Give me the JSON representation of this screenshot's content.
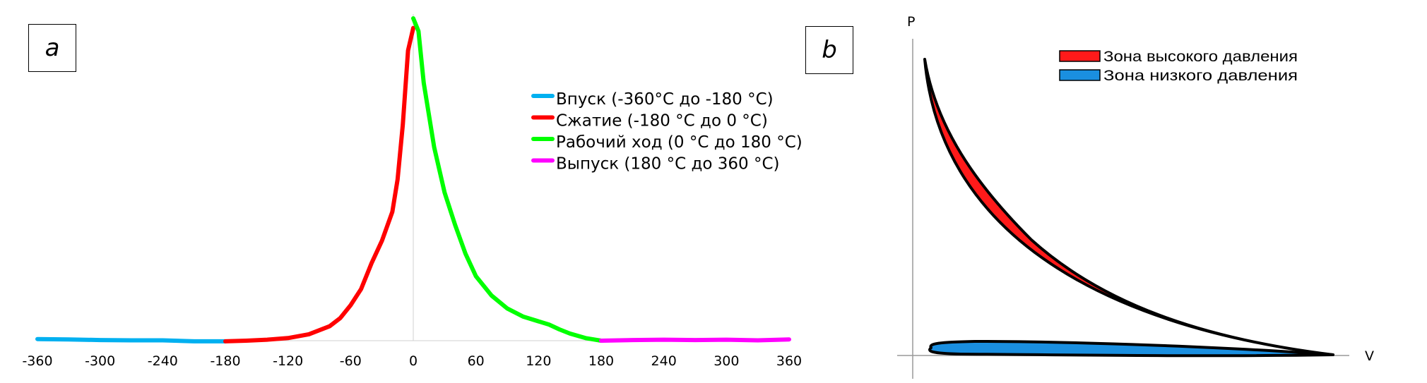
{
  "panels": {
    "a_label": "a",
    "b_label": "b"
  },
  "chart_data": [
    {
      "type": "line",
      "panel": "a",
      "xlim": [
        -360,
        360
      ],
      "x_ticks": [
        "-360",
        "-300",
        "-240",
        "-180",
        "-120",
        "-60",
        "0",
        "60",
        "120",
        "180",
        "240",
        "300",
        "360"
      ],
      "y_axis_visible": false,
      "grid": false,
      "legend_position": "right",
      "legend": [
        {
          "label": "Впуск (-360°C до -180 °C)",
          "color": "#00b0f0"
        },
        {
          "label": "Сжатие (-180 °C до 0 °C)",
          "color": "#ff0000"
        },
        {
          "label": "Рабочий ход (0 °C до 180 °C)",
          "color": "#00ff00"
        },
        {
          "label": "Выпуск (180 °C  до 360 °C)",
          "color": "#ff00ff"
        }
      ],
      "series": [
        {
          "name": "Впуск (-360°C до -180 °C)",
          "color": "#00b0f0",
          "points": [
            [
              -360,
              0.005
            ],
            [
              -330,
              0.004
            ],
            [
              -300,
              0.002
            ],
            [
              -270,
              0.001
            ],
            [
              -240,
              0.001
            ],
            [
              -210,
              -0.002
            ],
            [
              -180,
              -0.002
            ]
          ]
        },
        {
          "name": "Сжатие (-180 °C до 0 °C)",
          "color": "#ff0000",
          "points": [
            [
              -180,
              -0.002
            ],
            [
              -160,
              0.0
            ],
            [
              -140,
              0.003
            ],
            [
              -120,
              0.008
            ],
            [
              -100,
              0.02
            ],
            [
              -80,
              0.045
            ],
            [
              -70,
              0.07
            ],
            [
              -60,
              0.11
            ],
            [
              -50,
              0.16
            ],
            [
              -40,
              0.24
            ],
            [
              -30,
              0.31
            ],
            [
              -20,
              0.4
            ],
            [
              -15,
              0.5
            ],
            [
              -10,
              0.67
            ],
            [
              -5,
              0.9
            ],
            [
              0,
              0.97
            ]
          ]
        },
        {
          "name": "Рабочий ход (0 °C до 180 °C)",
          "color": "#00ff00",
          "points": [
            [
              0,
              1.0
            ],
            [
              5,
              0.96
            ],
            [
              10,
              0.8
            ],
            [
              20,
              0.6
            ],
            [
              30,
              0.46
            ],
            [
              40,
              0.36
            ],
            [
              50,
              0.27
            ],
            [
              60,
              0.2
            ],
            [
              75,
              0.14
            ],
            [
              90,
              0.1
            ],
            [
              105,
              0.075
            ],
            [
              120,
              0.06
            ],
            [
              130,
              0.05
            ],
            [
              140,
              0.035
            ],
            [
              150,
              0.022
            ],
            [
              165,
              0.008
            ],
            [
              180,
              0.0
            ]
          ]
        },
        {
          "name": "Выпуск (180 °C  до 360 °C)",
          "color": "#ff00ff",
          "points": [
            [
              180,
              0.0
            ],
            [
              210,
              0.002
            ],
            [
              240,
              0.003
            ],
            [
              270,
              0.002
            ],
            [
              300,
              0.003
            ],
            [
              330,
              0.001
            ],
            [
              360,
              0.004
            ]
          ]
        }
      ]
    },
    {
      "type": "area",
      "panel": "b",
      "xlabel": "V",
      "ylabel": "P",
      "ticks": false,
      "legend_position": "top-right",
      "legend": [
        {
          "label": "Зона высокого давления",
          "color": "#ff1a1a"
        },
        {
          "label": "Зона низкого давления",
          "color": "#1a8fe0"
        }
      ]
    }
  ]
}
